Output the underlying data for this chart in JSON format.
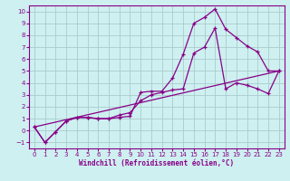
{
  "xlabel": "Windchill (Refroidissement éolien,°C)",
  "bg_color": "#cef0f0",
  "grid_color": "#aacccc",
  "line_color": "#880088",
  "spine_color": "#880088",
  "xlim": [
    -0.5,
    23.5
  ],
  "ylim": [
    -1.5,
    10.5
  ],
  "xticks": [
    0,
    1,
    2,
    3,
    4,
    5,
    6,
    7,
    8,
    9,
    10,
    11,
    12,
    13,
    14,
    15,
    16,
    17,
    18,
    19,
    20,
    21,
    22,
    23
  ],
  "yticks": [
    -1,
    0,
    1,
    2,
    3,
    4,
    5,
    6,
    7,
    8,
    9,
    10
  ],
  "line1_x": [
    0,
    1,
    2,
    3,
    4,
    5,
    6,
    7,
    8,
    9,
    10,
    11,
    12,
    13,
    14,
    15,
    16,
    17,
    18,
    19,
    20,
    21,
    22,
    23
  ],
  "line1_y": [
    0.3,
    -1.0,
    -0.1,
    0.8,
    1.1,
    1.1,
    1.0,
    1.0,
    1.1,
    1.2,
    3.2,
    3.3,
    3.3,
    4.4,
    6.4,
    9.0,
    9.5,
    10.2,
    8.5,
    7.8,
    7.1,
    6.6,
    5.0,
    5.0
  ],
  "line2_x": [
    0,
    1,
    2,
    3,
    4,
    5,
    6,
    7,
    8,
    9,
    10,
    11,
    12,
    13,
    14,
    15,
    16,
    17,
    18,
    19,
    20,
    21,
    22,
    23
  ],
  "line2_y": [
    0.3,
    -1.0,
    -0.1,
    0.8,
    1.1,
    1.1,
    1.0,
    1.0,
    1.3,
    1.5,
    2.5,
    3.0,
    3.2,
    3.4,
    3.5,
    6.5,
    7.0,
    8.6,
    3.5,
    4.0,
    3.8,
    3.5,
    3.1,
    5.0
  ],
  "line3_x": [
    0,
    23
  ],
  "line3_y": [
    0.3,
    5.0
  ],
  "tick_fontsize": 5.0,
  "label_fontsize": 5.5
}
